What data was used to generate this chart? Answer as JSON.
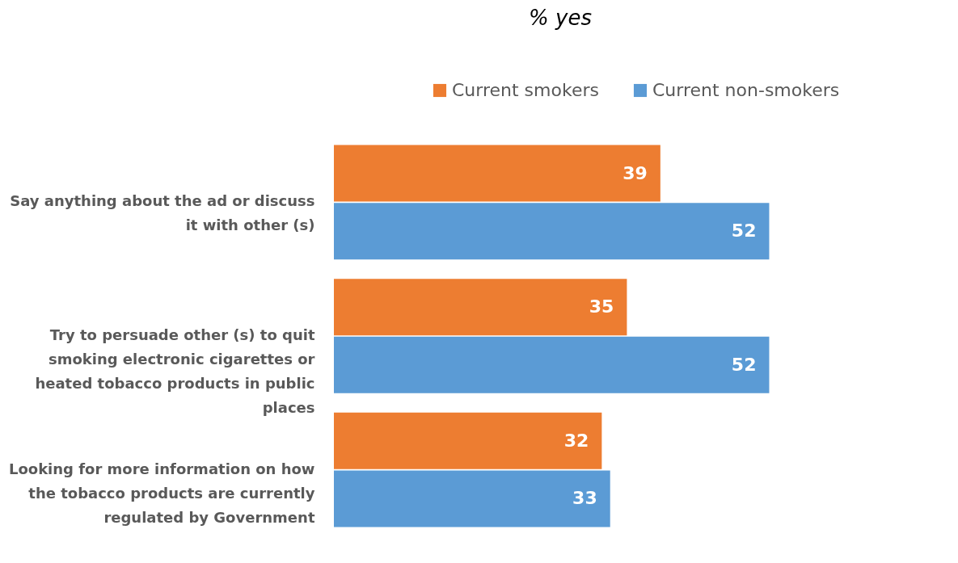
{
  "chart_data": {
    "type": "bar",
    "orientation": "horizontal",
    "title": "% yes",
    "categories": [
      "Say anything about the ad or discuss it with other (s)",
      "Try to persuade other (s) to quit smoking electronic cigarettes or heated tobacco products in public places",
      "Looking for more information on how the tobacco products are currently regulated by Government"
    ],
    "series": [
      {
        "name": "Current smokers",
        "color": "#ed7d31",
        "values": [
          39,
          35,
          32
        ]
      },
      {
        "name": "Current non-smokers",
        "color": "#5b9bd5",
        "values": [
          52,
          52,
          33
        ]
      }
    ],
    "data_labels": true,
    "legend": "top right",
    "grid": false
  }
}
